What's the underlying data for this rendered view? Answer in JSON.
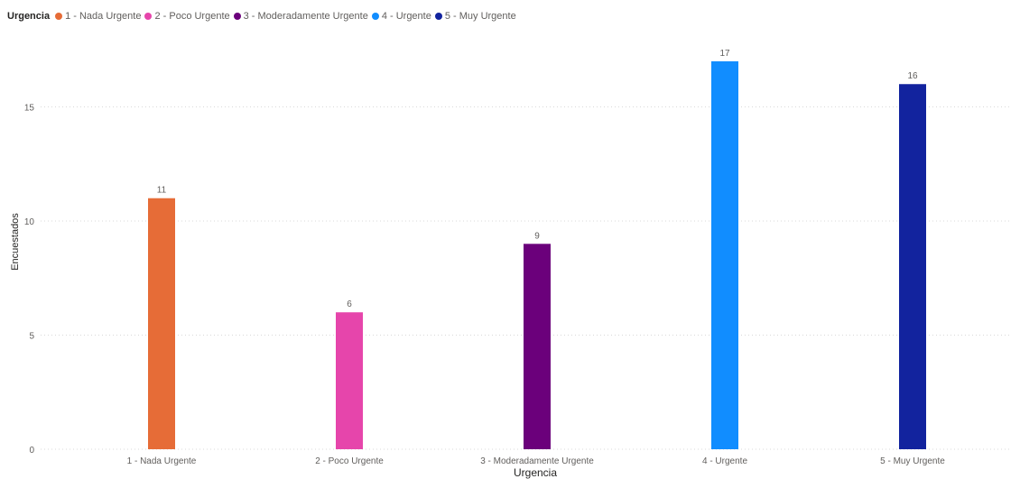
{
  "legend": {
    "title": "Urgencia",
    "items": [
      {
        "label": "1 - Nada Urgente",
        "color": "#E66C37"
      },
      {
        "label": "2 - Poco Urgente",
        "color": "#E645AB"
      },
      {
        "label": "3 - Moderadamente Urgente",
        "color": "#6B007B"
      },
      {
        "label": "4 - Urgente",
        "color": "#118DFF"
      },
      {
        "label": "5 - Muy Urgente",
        "color": "#12239E"
      }
    ]
  },
  "chart_data": {
    "type": "bar",
    "categories": [
      "1 - Nada Urgente",
      "2 - Poco Urgente",
      "3 - Moderadamente Urgente",
      "4 - Urgente",
      "5 - Muy Urgente"
    ],
    "values": [
      11,
      6,
      9,
      17,
      16
    ],
    "colors": [
      "#E66C37",
      "#E645AB",
      "#6B007B",
      "#118DFF",
      "#12239E"
    ],
    "xlabel": "Urgencia",
    "ylabel": "Encuestados",
    "ylim": [
      0,
      18.5
    ],
    "yticks": [
      0,
      5,
      10,
      15
    ],
    "grid": true,
    "data_labels": true,
    "legend_position": "top-left"
  }
}
